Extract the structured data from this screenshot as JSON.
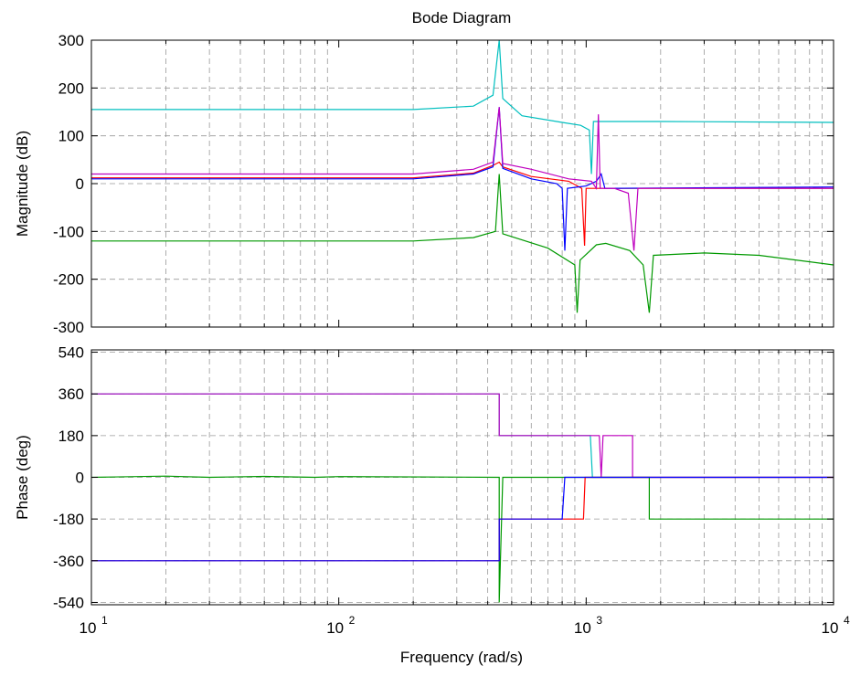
{
  "chart_data": {
    "type": "line",
    "title": "Bode Diagram",
    "xlabel": "Frequency  (rad/s)",
    "x_scale": "log",
    "xlim": [
      10,
      10000
    ],
    "x_ticks": [
      {
        "base": "10",
        "exp": "1"
      },
      {
        "base": "10",
        "exp": "2"
      },
      {
        "base": "10",
        "exp": "3"
      },
      {
        "base": "10",
        "exp": "4"
      }
    ],
    "grid": true,
    "colors": {
      "cyan": "#00bfbf",
      "magenta": "#bf00bf",
      "red": "#ff0000",
      "blue": "#0000ff",
      "green": "#009900"
    },
    "panels": [
      {
        "ylabel": "Magnitude (dB)",
        "ylim": [
          -300,
          300
        ],
        "yticks": [
          -300,
          -200,
          -100,
          0,
          100,
          200,
          300
        ],
        "series": [
          {
            "color": "cyan",
            "points": [
              [
                10,
                155
              ],
              [
                200,
                155
              ],
              [
                350,
                162
              ],
              [
                420,
                185
              ],
              [
                445,
                300
              ],
              [
                460,
                178
              ],
              [
                550,
                142
              ],
              [
                800,
                128
              ],
              [
                950,
                122
              ],
              [
                1030,
                112
              ],
              [
                1050,
                20
              ],
              [
                1070,
                130
              ],
              [
                2000,
                130
              ],
              [
                10000,
                128
              ]
            ]
          },
          {
            "color": "green",
            "points": [
              [
                10,
                -120
              ],
              [
                200,
                -120
              ],
              [
                350,
                -113
              ],
              [
                430,
                -100
              ],
              [
                445,
                20
              ],
              [
                460,
                -105
              ],
              [
                700,
                -135
              ],
              [
                900,
                -170
              ],
              [
                920,
                -270
              ],
              [
                945,
                -160
              ],
              [
                1100,
                -128
              ],
              [
                1200,
                -125
              ],
              [
                1500,
                -140
              ],
              [
                1700,
                -170
              ],
              [
                1800,
                -270
              ],
              [
                1870,
                -150
              ],
              [
                3000,
                -145
              ],
              [
                5000,
                -150
              ],
              [
                10000,
                -170
              ]
            ]
          },
          {
            "color": "red",
            "points": [
              [
                10,
                12
              ],
              [
                200,
                12
              ],
              [
                350,
                22
              ],
              [
                420,
                38
              ],
              [
                445,
                45
              ],
              [
                460,
                35
              ],
              [
                600,
                15
              ],
              [
                850,
                5
              ],
              [
                960,
                -10
              ],
              [
                985,
                -130
              ],
              [
                1000,
                -10
              ],
              [
                1200,
                -10
              ],
              [
                10000,
                -10
              ]
            ]
          },
          {
            "color": "blue",
            "points": [
              [
                10,
                10
              ],
              [
                200,
                10
              ],
              [
                350,
                20
              ],
              [
                420,
                35
              ],
              [
                445,
                160
              ],
              [
                460,
                32
              ],
              [
                600,
                10
              ],
              [
                760,
                0
              ],
              [
                800,
                -10
              ],
              [
                820,
                -140
              ],
              [
                840,
                -10
              ],
              [
                1000,
                -5
              ],
              [
                1100,
                5
              ],
              [
                1150,
                20
              ],
              [
                1190,
                -10
              ],
              [
                10000,
                -7
              ]
            ]
          },
          {
            "color": "magenta",
            "points": [
              [
                10,
                20
              ],
              [
                200,
                20
              ],
              [
                350,
                30
              ],
              [
                420,
                45
              ],
              [
                445,
                160
              ],
              [
                460,
                42
              ],
              [
                600,
                30
              ],
              [
                850,
                10
              ],
              [
                1050,
                5
              ],
              [
                1100,
                -10
              ],
              [
                1120,
                145
              ],
              [
                1140,
                -10
              ],
              [
                1300,
                -10
              ],
              [
                1480,
                -20
              ],
              [
                1560,
                -140
              ],
              [
                1620,
                -10
              ],
              [
                10000,
                -10
              ]
            ]
          }
        ]
      },
      {
        "ylabel": "Phase (deg)",
        "ylim": [
          -550,
          550
        ],
        "yticks": [
          -540,
          -360,
          -180,
          0,
          180,
          360,
          540
        ],
        "series": [
          {
            "color": "cyan",
            "points": [
              [
                10,
                360
              ],
              [
                445,
                360
              ],
              [
                445,
                180
              ],
              [
                1040,
                180
              ],
              [
                1060,
                0
              ],
              [
                10000,
                0
              ]
            ]
          },
          {
            "color": "magenta",
            "points": [
              [
                10,
                360
              ],
              [
                445,
                360
              ],
              [
                445,
                180
              ],
              [
                1130,
                180
              ],
              [
                1150,
                0
              ],
              [
                1170,
                180
              ],
              [
                1540,
                180
              ],
              [
                1540,
                0
              ],
              [
                10000,
                0
              ]
            ]
          },
          {
            "color": "green",
            "points": [
              [
                10,
                0
              ],
              [
                20,
                5
              ],
              [
                30,
                0
              ],
              [
                50,
                4
              ],
              [
                80,
                0
              ],
              [
                100,
                3
              ],
              [
                445,
                0
              ],
              [
                445,
                -540
              ],
              [
                460,
                0
              ],
              [
                1800,
                0
              ],
              [
                1800,
                -180
              ],
              [
                10000,
                -180
              ]
            ]
          },
          {
            "color": "red",
            "points": [
              [
                10,
                -360
              ],
              [
                445,
                -360
              ],
              [
                445,
                -180
              ],
              [
                975,
                -180
              ],
              [
                990,
                0
              ],
              [
                10000,
                0
              ]
            ]
          },
          {
            "color": "blue",
            "points": [
              [
                10,
                -360
              ],
              [
                445,
                -360
              ],
              [
                445,
                -180
              ],
              [
                800,
                -180
              ],
              [
                820,
                0
              ],
              [
                10000,
                0
              ]
            ]
          }
        ]
      }
    ]
  }
}
